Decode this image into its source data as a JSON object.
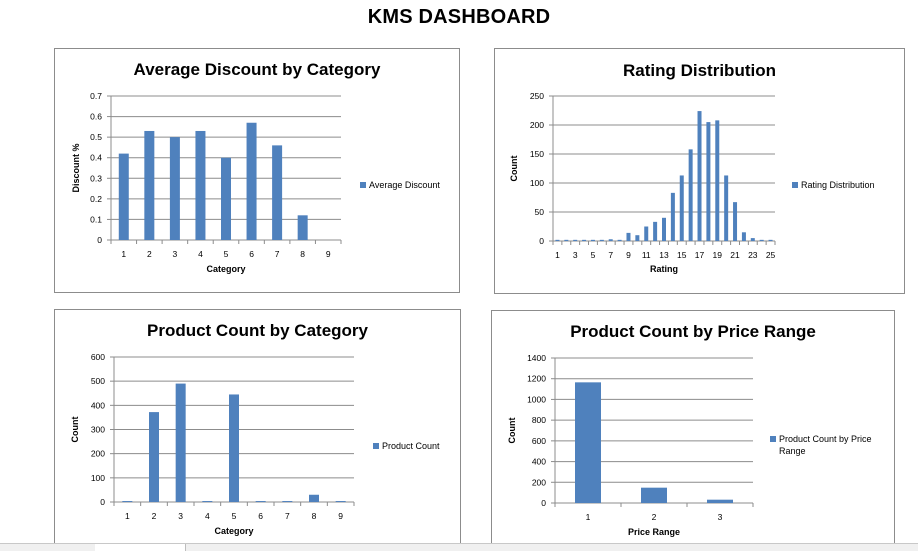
{
  "dashboard": {
    "title": "KMS DASHBOARD"
  },
  "colors": {
    "bar": "#4f81bd",
    "grid": "#8c8c8c",
    "axis": "#8c8c8c",
    "border": "#8c8c8c"
  },
  "chart_data": [
    {
      "id": "avg-discount",
      "type": "bar",
      "title": "Average Discount by Category",
      "xlabel": "Category",
      "ylabel": "Discount %",
      "ylim": [
        0,
        0.7
      ],
      "yticks": [
        "0",
        "0.1",
        "0.2",
        "0.3",
        "0.4",
        "0.5",
        "0.6",
        "0.7"
      ],
      "ytick_values": [
        0,
        0.1,
        0.2,
        0.3,
        0.4,
        0.5,
        0.6,
        0.7
      ],
      "categories": [
        "1",
        "2",
        "3",
        "4",
        "5",
        "6",
        "7",
        "8",
        "9"
      ],
      "series": [
        {
          "name": "Average Discount",
          "values": [
            0.42,
            0.53,
            0.5,
            0.53,
            0.4,
            0.57,
            0.46,
            0.12,
            0
          ]
        }
      ],
      "grid": true,
      "legend": "right"
    },
    {
      "id": "rating-distribution",
      "type": "bar",
      "title": "Rating Distribution",
      "xlabel": "Rating",
      "ylabel": "Count",
      "ylim": [
        0,
        250
      ],
      "yticks": [
        "0",
        "50",
        "100",
        "150",
        "200",
        "250"
      ],
      "ytick_values": [
        0,
        50,
        100,
        150,
        200,
        250
      ],
      "categories": [
        "1",
        "2",
        "3",
        "4",
        "5",
        "6",
        "7",
        "8",
        "9",
        "10",
        "11",
        "12",
        "13",
        "14",
        "15",
        "16",
        "17",
        "18",
        "19",
        "20",
        "21",
        "22",
        "23",
        "24",
        "25"
      ],
      "category_labels": [
        "1",
        "",
        "3",
        "",
        "5",
        "",
        "7",
        "",
        "9",
        "",
        "11",
        "",
        "13",
        "",
        "15",
        "",
        "17",
        "",
        "19",
        "",
        "21",
        "",
        "23",
        "",
        "25"
      ],
      "series": [
        {
          "name": "Rating Distribution",
          "values": [
            2,
            2,
            2,
            2,
            2,
            2,
            3,
            2,
            14,
            10,
            25,
            33,
            40,
            83,
            113,
            158,
            224,
            205,
            208,
            113,
            67,
            15,
            5,
            2,
            2
          ]
        }
      ],
      "grid": true,
      "legend": "right"
    },
    {
      "id": "product-count-category",
      "type": "bar",
      "title": "Product Count by Category",
      "xlabel": "Category",
      "ylabel": "Count",
      "ylim": [
        0,
        600
      ],
      "yticks": [
        "0",
        "100",
        "200",
        "300",
        "400",
        "500",
        "600"
      ],
      "ytick_values": [
        0,
        100,
        200,
        300,
        400,
        500,
        600
      ],
      "categories": [
        "1",
        "2",
        "3",
        "4",
        "5",
        "6",
        "7",
        "8",
        "9"
      ],
      "series": [
        {
          "name": "Product Count",
          "values": [
            4,
            372,
            490,
            4,
            445,
            4,
            4,
            30,
            4
          ]
        }
      ],
      "grid": true,
      "legend": "right"
    },
    {
      "id": "product-count-price",
      "type": "bar",
      "title": "Product Count by Price Range",
      "xlabel": "Price Range",
      "ylabel": "Count",
      "ylim": [
        0,
        1400
      ],
      "yticks": [
        "0",
        "200",
        "400",
        "600",
        "800",
        "1000",
        "1200",
        "1400"
      ],
      "ytick_values": [
        0,
        200,
        400,
        600,
        800,
        1000,
        1200,
        1400
      ],
      "categories": [
        "1",
        "2",
        "3"
      ],
      "series": [
        {
          "name": "Product Count by Price Range",
          "values": [
            1165,
            148,
            32
          ]
        }
      ],
      "legend_lines": [
        "Product Count by Price",
        "Range"
      ],
      "grid": true,
      "legend": "right"
    }
  ]
}
